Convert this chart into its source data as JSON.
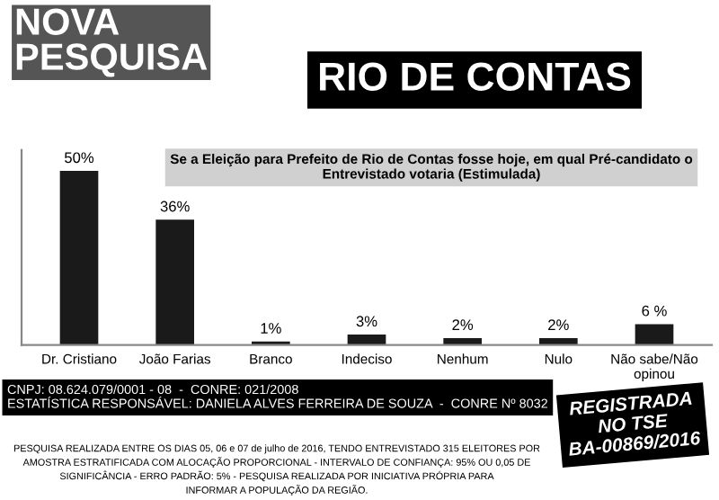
{
  "chart_data": {
    "type": "bar",
    "title": "NOVA\nPESQUISA",
    "subtitle": "RIO DE CONTAS",
    "categories": [
      "Dr. Cristiano",
      "João Farias",
      "Branco",
      "Indeciso",
      "Nenhum",
      "Nulo",
      "Não sabe/Não\nopinou"
    ],
    "values": [
      50,
      36,
      1,
      3,
      2,
      2,
      6
    ],
    "value_labels": [
      "50%",
      "36%",
      "1%",
      "3%",
      "2%",
      "2%",
      "6 %"
    ],
    "color": "#1a1a1a",
    "annotations": [
      "Se a Eleição para Prefeito de Rio de Contas fosse hoje, em qual Pré-candidato o\nEntrevistado votaria (Estimulada)",
      "CNPJ: 08.624.079/0001 - 08  -  CONRE: 021/2008\nESTATÍSTICA RESPONSÁVEL: DANIELA ALVES FERREIRA DE SOUZA  -  CONRE Nº 8032",
      "PESQUISA REALIZADA ENTRE OS DIAS 05, 06 e 07 de julho de 2016, TENDO ENTREVISTADO 315 ELEITORES POR\nAMOSTRA ESTRATIFICADA COM ALOCAÇÃO PROPORCIONAL - INTERVALO DE CONFIANÇA: 95% OU 0,05 DE\nSIGNIFICÂNCIA - ERRO PADRÃO: 5% - PESQUISA REALIZADA POR INICIATIVA PRÓPRIA PARA\nINFORMAR A POPULAÇÃO DA REGIÃO.",
      "REGISTRADA\nNO TSE\nBA-00869/2016"
    ]
  }
}
